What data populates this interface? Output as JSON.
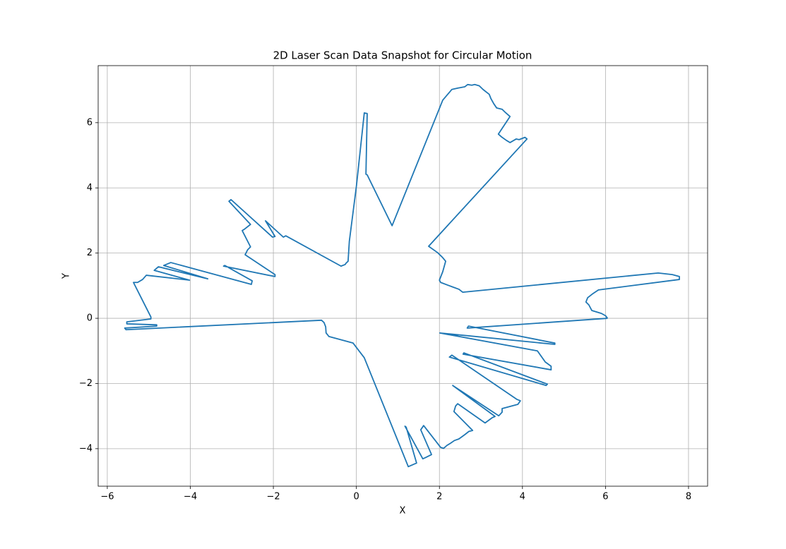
{
  "chart_data": {
    "type": "line",
    "title": "2D Laser Scan Data Snapshot for Circular Motion",
    "x_label": "X",
    "y_label": "Y",
    "series": [
      {
        "color": "#1f77b4",
        "x": [
          6.05,
          6.0,
          5.9,
          5.67,
          5.6,
          5.53,
          5.57,
          5.7,
          5.83,
          7.78,
          7.78,
          7.61,
          7.27,
          2.56,
          2.47,
          2.3,
          2.03,
          2.0,
          2.08,
          2.15,
          2.08,
          1.96,
          1.74,
          4.11,
          4.06,
          3.92,
          3.85,
          3.7,
          3.61,
          3.49,
          3.42,
          3.7,
          3.6,
          3.51,
          3.38,
          3.31,
          3.24,
          3.2,
          3.05,
          2.96,
          2.85,
          2.78,
          2.68,
          2.61,
          2.44,
          2.3,
          2.08,
          0.86,
          0.26,
          0.23,
          0.26,
          0.19,
          0.0,
          -0.17,
          -0.2,
          -0.25,
          -0.27,
          -0.37,
          -1.7,
          -1.76,
          -2.19,
          -1.96,
          -2.02,
          -3.02,
          -3.07,
          -2.55,
          -2.7,
          -2.75,
          -2.55,
          -2.62,
          -2.68,
          -1.96,
          -1.96,
          -3.2,
          -3.17,
          -2.51,
          -2.53,
          -4.47,
          -4.64,
          -3.58,
          -4.77,
          -4.87,
          -4.02,
          -5.06,
          -5.15,
          -5.27,
          -5.37,
          -4.95,
          -4.95,
          -5.53,
          -5.53,
          -4.81,
          -4.81,
          -5.58,
          -5.55,
          -0.84,
          -0.78,
          -0.74,
          -0.73,
          -0.66,
          -0.08,
          0.19,
          1.25,
          1.45,
          1.2,
          1.17,
          1.6,
          1.67,
          1.81,
          1.55,
          1.62,
          2.03,
          2.1,
          2.18,
          2.27,
          2.36,
          2.47,
          2.61,
          2.71,
          2.8,
          2.35,
          2.39,
          2.44,
          3.1,
          3.27,
          3.34,
          2.32,
          3.43,
          3.51,
          3.51,
          3.89,
          3.95,
          3.87,
          2.3,
          2.24,
          4.57,
          4.6,
          2.59,
          2.57,
          4.69,
          4.69,
          4.55,
          4.36,
          2.01,
          4.78,
          4.78,
          2.7,
          2.67,
          6.05
        ],
        "y": [
          0.0,
          0.08,
          0.15,
          0.24,
          0.41,
          0.5,
          0.63,
          0.76,
          0.87,
          1.19,
          1.28,
          1.34,
          1.39,
          0.8,
          0.89,
          0.97,
          1.1,
          1.17,
          1.43,
          1.75,
          1.86,
          2.01,
          2.21,
          5.5,
          5.55,
          5.48,
          5.5,
          5.39,
          5.46,
          5.57,
          5.65,
          6.19,
          6.3,
          6.41,
          6.45,
          6.58,
          6.74,
          6.87,
          7.02,
          7.13,
          7.17,
          7.15,
          7.17,
          7.1,
          7.06,
          7.02,
          6.69,
          2.84,
          4.4,
          4.42,
          6.28,
          6.3,
          4.05,
          2.36,
          1.75,
          1.69,
          1.65,
          1.6,
          2.53,
          2.49,
          2.99,
          2.51,
          2.49,
          3.64,
          3.59,
          2.88,
          2.73,
          2.69,
          2.19,
          2.1,
          1.95,
          1.34,
          1.28,
          1.6,
          1.62,
          1.15,
          1.04,
          1.71,
          1.62,
          1.21,
          1.58,
          1.47,
          1.17,
          1.32,
          1.19,
          1.1,
          1.1,
          0.04,
          -0.02,
          -0.11,
          -0.17,
          -0.2,
          -0.24,
          -0.3,
          -0.35,
          -0.06,
          -0.13,
          -0.26,
          -0.45,
          -0.56,
          -0.76,
          -1.21,
          -4.55,
          -4.44,
          -3.34,
          -3.31,
          -4.31,
          -4.27,
          -4.18,
          -3.42,
          -3.29,
          -3.96,
          -3.99,
          -3.9,
          -3.83,
          -3.75,
          -3.7,
          -3.57,
          -3.47,
          -3.44,
          -2.86,
          -2.69,
          -2.62,
          -3.21,
          -3.05,
          -3.01,
          -2.06,
          -2.99,
          -2.88,
          -2.77,
          -2.64,
          -2.53,
          -2.49,
          -1.13,
          -1.19,
          -2.06,
          -2.02,
          -1.06,
          -1.1,
          -1.58,
          -1.47,
          -1.34,
          -1.0,
          -0.45,
          -0.8,
          -0.76,
          -0.24,
          -0.3,
          0.0
        ]
      }
    ],
    "xlim": [
      -6.22,
      8.46
    ],
    "ylim": [
      -5.15,
      7.75
    ],
    "xticks": [
      {
        "value": -6,
        "label": "−6"
      },
      {
        "value": -4,
        "label": "−4"
      },
      {
        "value": -2,
        "label": "−2"
      },
      0,
      2,
      4,
      6,
      8
    ],
    "yticks": [
      {
        "value": -4,
        "label": "−4"
      },
      {
        "value": -2,
        "label": "−2"
      },
      0,
      2,
      4,
      6
    ],
    "grid": true
  }
}
